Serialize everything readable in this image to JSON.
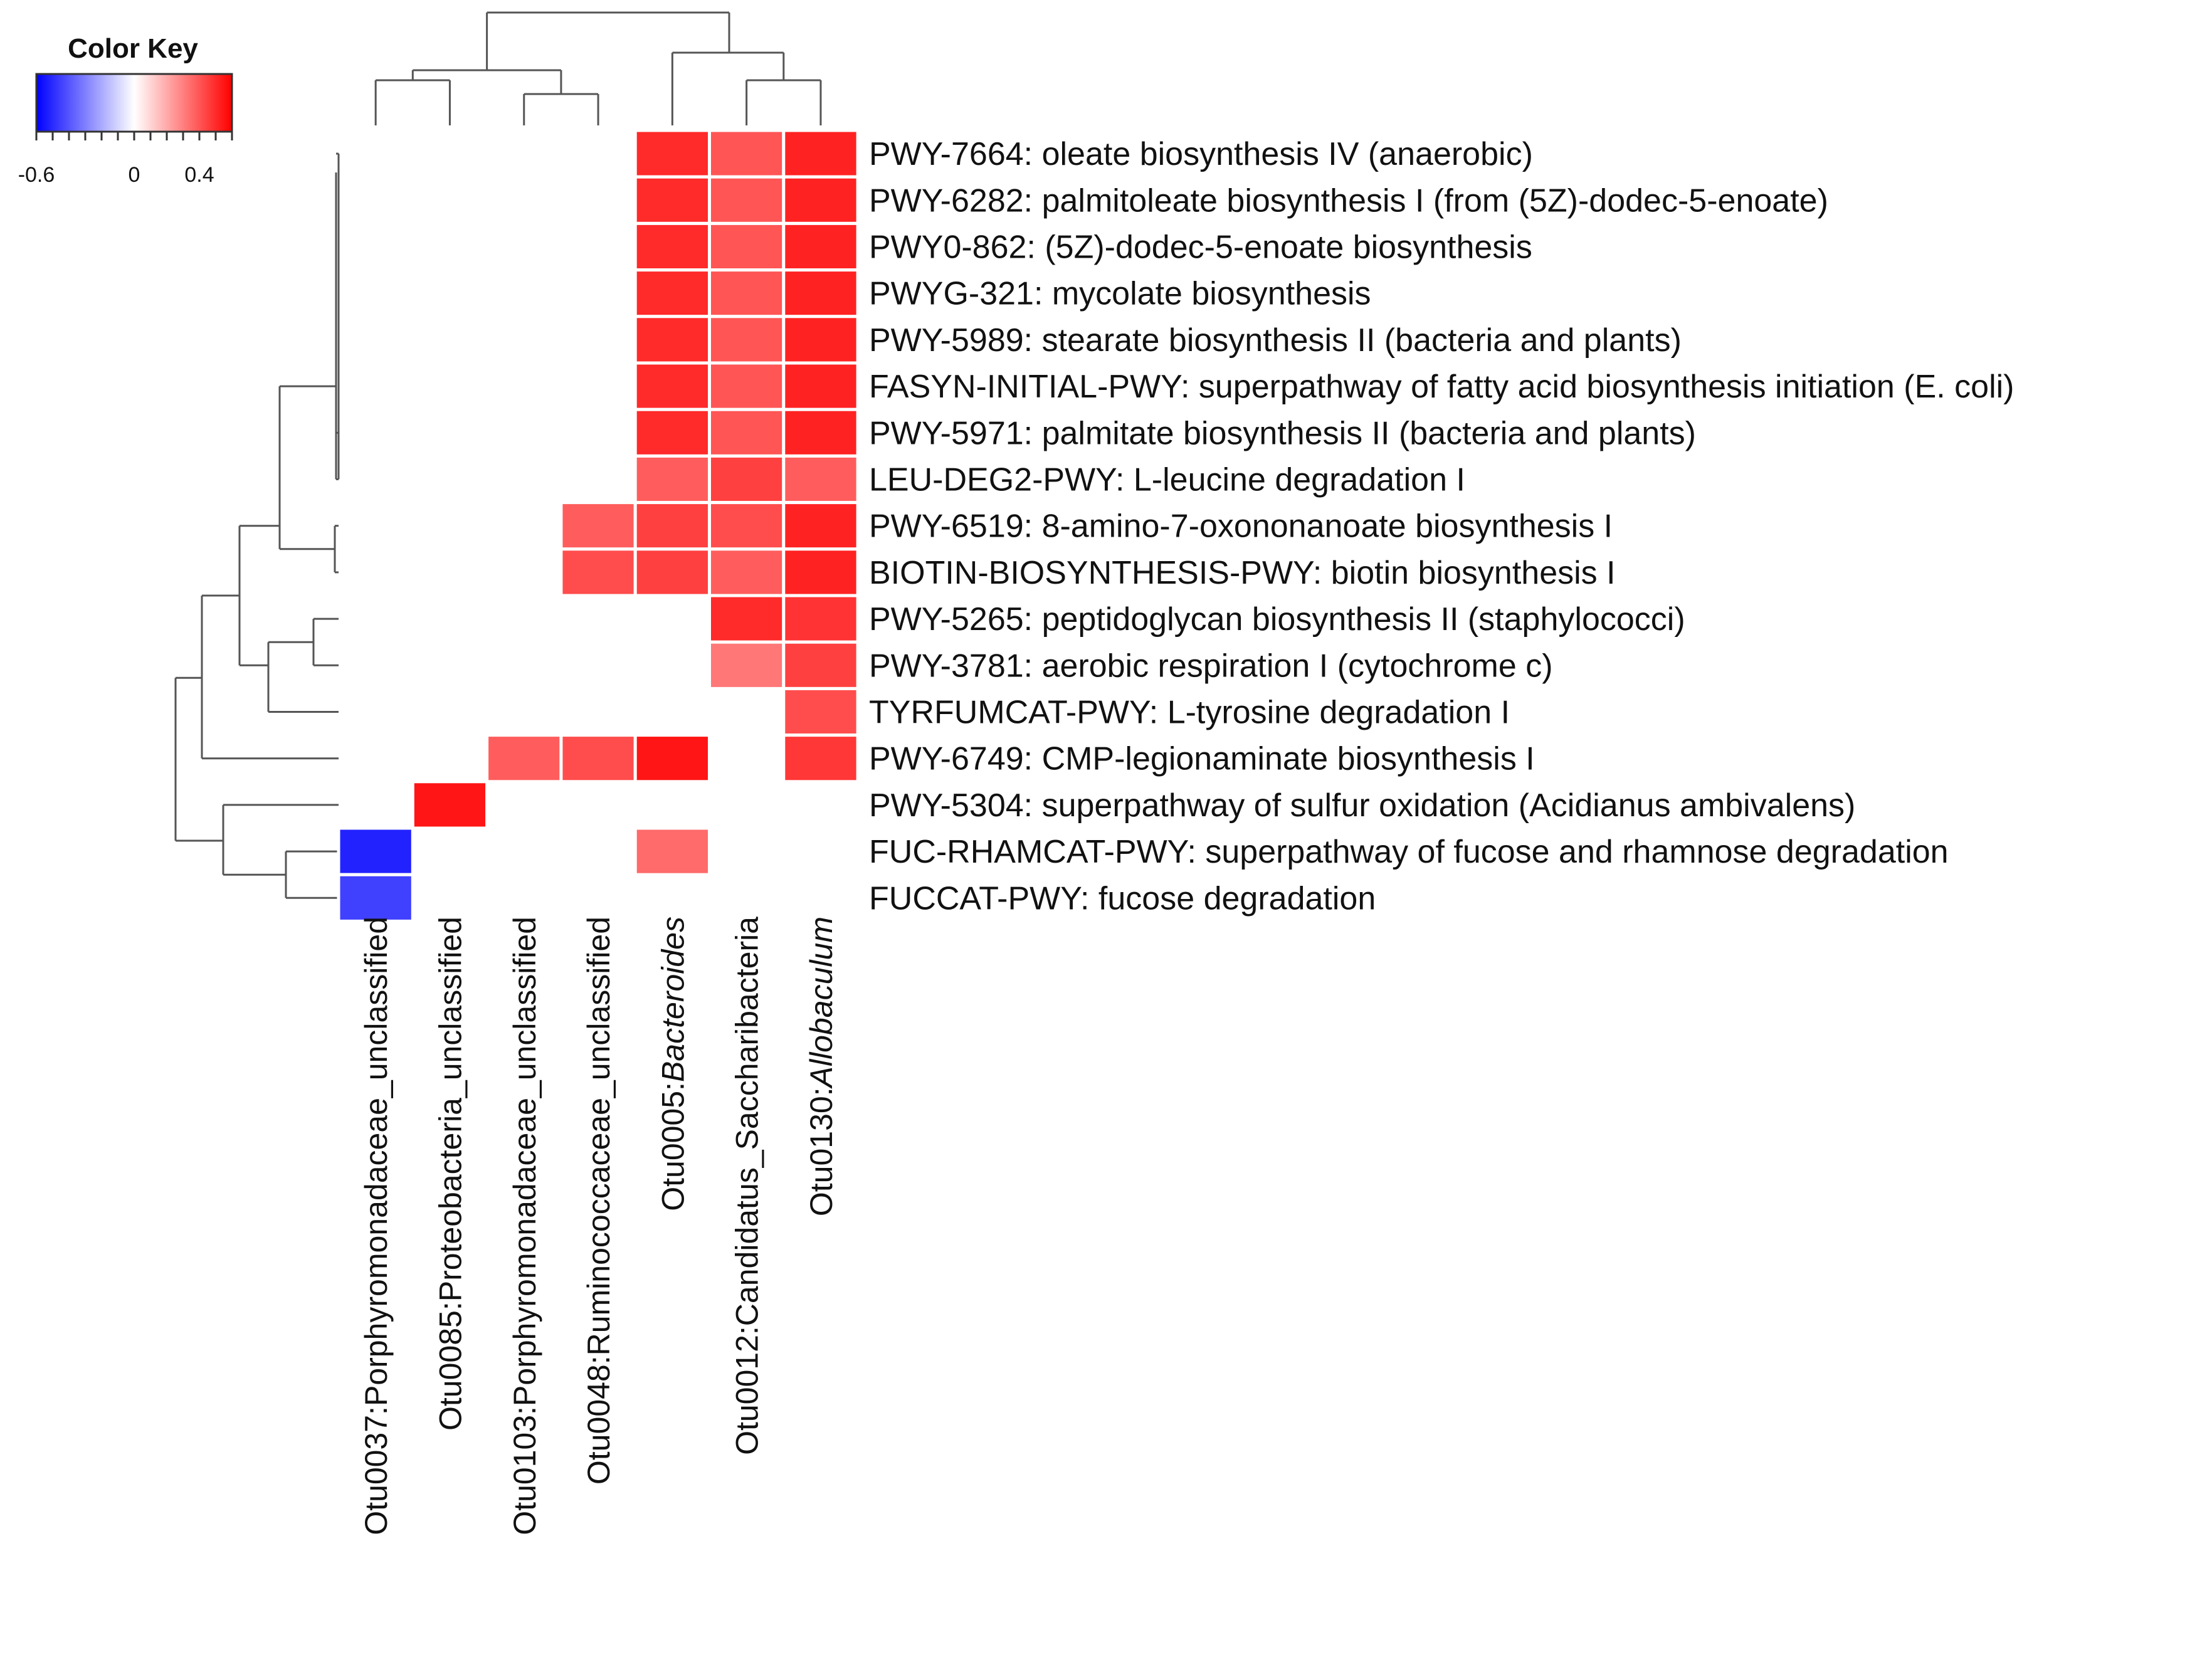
{
  "chart_data": {
    "type": "heatmap",
    "title": "",
    "color_key": {
      "title": "Color Key",
      "ticks": [
        -0.6,
        0,
        0.4
      ],
      "tick_labels": [
        "-0.6",
        "0",
        "0.4"
      ],
      "range": [
        -0.6,
        0.6
      ],
      "colors": {
        "low": "#0000ff",
        "mid": "#ffffff",
        "high": "#ff0000"
      }
    },
    "columns": [
      {
        "id": "Otu0037",
        "prefix": "Otu0037:",
        "name": "Porphyromonadaceae_unclassified",
        "italic": false
      },
      {
        "id": "Otu0085",
        "prefix": "Otu0085:",
        "name": "Proteobacteria_unclassified",
        "italic": false
      },
      {
        "id": "Otu0103",
        "prefix": "Otu0103:",
        "name": "Porphyromonadaceae_unclassified",
        "italic": false
      },
      {
        "id": "Otu0048",
        "prefix": "Otu0048:",
        "name": "Ruminococcaceae_unclassified",
        "italic": false
      },
      {
        "id": "Otu0005",
        "prefix": "Otu0005:",
        "name": "Bacteroides",
        "italic": true
      },
      {
        "id": "Otu0012",
        "prefix": "Otu0012:",
        "name": "Candidatus_Saccharibacteria",
        "italic": false
      },
      {
        "id": "Otu0130",
        "prefix": "Otu0130:",
        "name": "Allobaculum",
        "italic": true
      }
    ],
    "rows": [
      "PWY-7664: oleate biosynthesis IV (anaerobic)",
      "PWY-6282: palmitoleate biosynthesis I (from (5Z)-dodec-5-enoate)",
      "PWY0-862: (5Z)-dodec-5-enoate biosynthesis",
      "PWYG-321: mycolate biosynthesis",
      "PWY-5989: stearate biosynthesis II (bacteria and plants)",
      "FASYN-INITIAL-PWY: superpathway of fatty acid biosynthesis initiation (E. coli)",
      "PWY-5971: palmitate biosynthesis II (bacteria and plants)",
      "LEU-DEG2-PWY: L-leucine degradation I",
      "PWY-6519: 8-amino-7-oxononanoate biosynthesis I",
      "BIOTIN-BIOSYNTHESIS-PWY: biotin biosynthesis I",
      "PWY-5265: peptidoglycan biosynthesis II (staphylococci)",
      "PWY-3781: aerobic respiration I (cytochrome c)",
      "TYRFUMCAT-PWY: L-tyrosine degradation I",
      "PWY-6749: CMP-legionaminate biosynthesis I",
      "PWY-5304: superpathway of sulfur oxidation (Acidianus ambivalens)",
      "FUC-RHAMCAT-PWY: superpathway of fucose and rhamnose degradation",
      "FUCCAT-PWY: fucose degradation"
    ],
    "values": [
      [
        null,
        null,
        null,
        null,
        0.5,
        0.4,
        0.52
      ],
      [
        null,
        null,
        null,
        null,
        0.5,
        0.4,
        0.52
      ],
      [
        null,
        null,
        null,
        null,
        0.5,
        0.4,
        0.52
      ],
      [
        null,
        null,
        null,
        null,
        0.5,
        0.4,
        0.52
      ],
      [
        null,
        null,
        null,
        null,
        0.5,
        0.4,
        0.52
      ],
      [
        null,
        null,
        null,
        null,
        0.5,
        0.4,
        0.52
      ],
      [
        null,
        null,
        null,
        null,
        0.5,
        0.4,
        0.52
      ],
      [
        null,
        null,
        null,
        null,
        0.38,
        0.45,
        0.38
      ],
      [
        null,
        null,
        null,
        0.38,
        0.45,
        0.42,
        0.52
      ],
      [
        null,
        null,
        null,
        0.42,
        0.45,
        0.38,
        0.52
      ],
      [
        null,
        null,
        null,
        null,
        null,
        0.5,
        0.48
      ],
      [
        null,
        null,
        null,
        null,
        null,
        0.32,
        0.45
      ],
      [
        null,
        null,
        null,
        null,
        null,
        null,
        0.42
      ],
      [
        null,
        null,
        0.38,
        0.42,
        0.55,
        null,
        0.47
      ],
      [
        null,
        0.55,
        null,
        null,
        null,
        null,
        null
      ],
      [
        -0.52,
        null,
        null,
        null,
        0.35,
        null,
        null
      ],
      [
        -0.45,
        null,
        null,
        null,
        null,
        null,
        null
      ]
    ]
  }
}
